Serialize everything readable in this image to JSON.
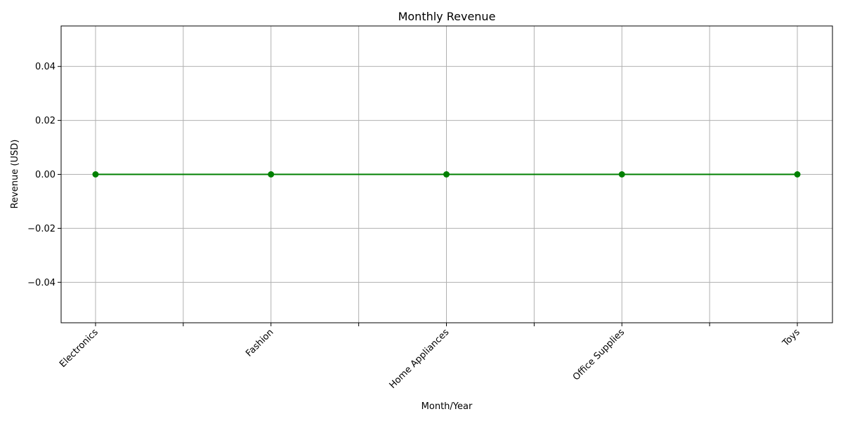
{
  "chart_data": {
    "type": "line",
    "title": "Monthly Revenue",
    "xlabel": "Month/Year",
    "ylabel": "Revenue (USD)",
    "categories": [
      "Electronics",
      "Fashion",
      "Home Appliances",
      "Office Supplies",
      "Toys"
    ],
    "series": [
      {
        "values": [
          0,
          0,
          0,
          0,
          0
        ]
      }
    ],
    "ylim": [
      -0.055,
      0.055
    ],
    "y_ticks": [
      -0.04,
      -0.02,
      0.0,
      0.02,
      0.04
    ],
    "y_tick_labels": [
      "−0.04",
      "−0.02",
      "0.00",
      "0.02",
      "0.04"
    ],
    "x_tick_label_rotation": 45,
    "minor_x_ticks": true,
    "grid": true,
    "colors": {
      "line": "#008000",
      "marker": "#008000",
      "grid": "#b0b0b0",
      "axis": "#000000"
    }
  }
}
